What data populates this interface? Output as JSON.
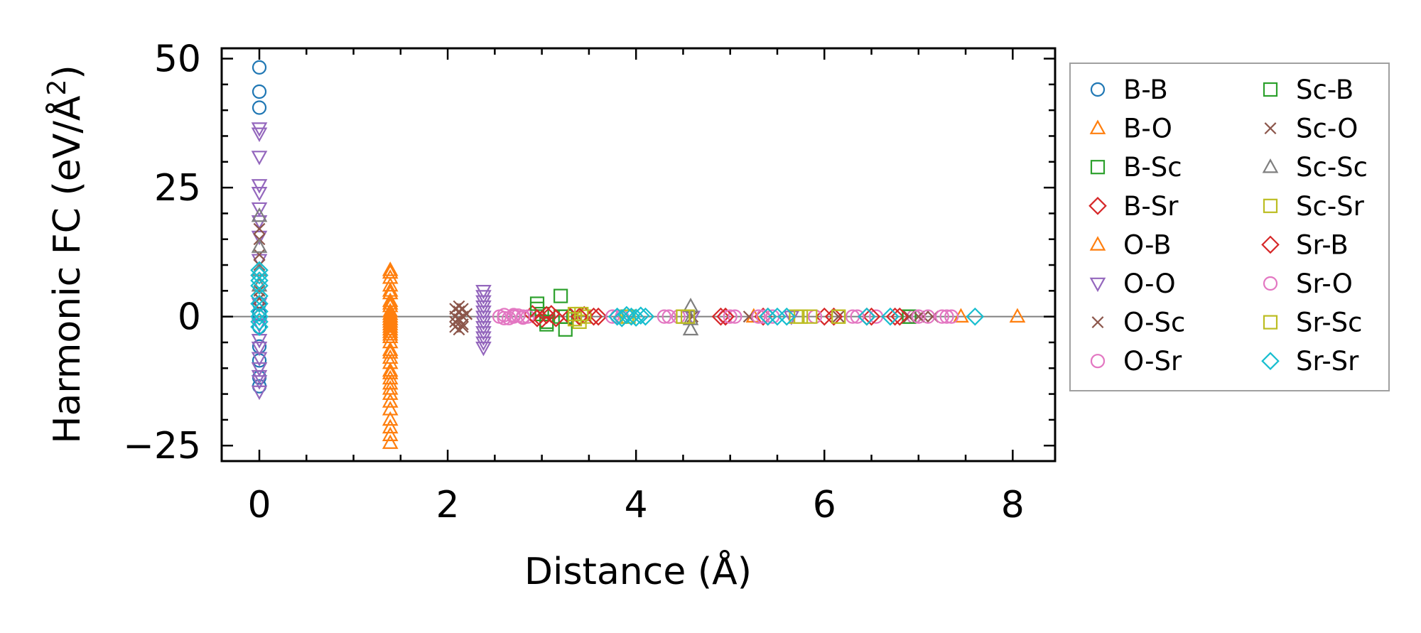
{
  "chart_data": {
    "type": "scatter",
    "title": "",
    "xlabel": "Distance (Å)",
    "ylabel_main": "Harmonic FC (eV/Å",
    "ylabel_sup": "2",
    "ylabel_end": ")",
    "xlim": [
      -0.4,
      8.45
    ],
    "ylim": [
      -28,
      52
    ],
    "xticks": [
      0,
      2,
      4,
      6,
      8
    ],
    "xtick_labels": [
      "0",
      "2",
      "4",
      "6",
      "8"
    ],
    "yticks": [
      -25,
      0,
      25,
      50
    ],
    "ytick_labels": [
      "−25",
      "0",
      "25",
      "50"
    ],
    "zero_line": true,
    "grid": false,
    "legend_position": "outside-right",
    "legend_columns": 2,
    "series": [
      {
        "name": "B-B",
        "marker": "circle",
        "color": "#1f77b4",
        "x": [
          0,
          0,
          0,
          0,
          0,
          0,
          0,
          0,
          0,
          0
        ],
        "y": [
          48.3,
          43.6,
          40.5,
          -5.8,
          -8.5,
          -11.8,
          -13.5,
          2.5,
          0.5,
          -2.0
        ]
      },
      {
        "name": "B-O",
        "marker": "triangle-up",
        "color": "#ff7f0e",
        "x": [
          1.39,
          1.39,
          1.39,
          1.39,
          1.39,
          1.39,
          1.39,
          1.39,
          1.39,
          1.39,
          1.39,
          1.39,
          1.39,
          1.39,
          1.39,
          1.39,
          1.39,
          1.39,
          1.39,
          1.39,
          1.39,
          1.39,
          1.39,
          1.39,
          1.39,
          1.39,
          1.39,
          1.39,
          1.39,
          1.39,
          8.05,
          7.45,
          5.25
        ],
        "y": [
          8.5,
          7.5,
          6.0,
          4.5,
          3.0,
          2.0,
          1.0,
          0.0,
          -1.0,
          -2.0,
          -3.0,
          -4.0,
          -5.0,
          -6.5,
          -8.0,
          -9.0,
          -10.5,
          -12.0,
          -13.0,
          -15.0,
          -16.5,
          -18.0,
          -20.0,
          -21.5,
          -23.0,
          -24.5,
          0.5,
          -0.5,
          -1.5,
          -2.5,
          0.0,
          0.0,
          0.0
        ]
      },
      {
        "name": "B-Sc",
        "marker": "square",
        "color": "#2ca02c",
        "x": [
          2.95,
          3.0,
          3.05,
          3.2,
          3.25,
          6.9
        ],
        "y": [
          1.5,
          0.5,
          -1.5,
          0.0,
          0.0,
          0.0
        ]
      },
      {
        "name": "B-Sr",
        "marker": "diamond",
        "color": "#d62728",
        "x": [
          2.9,
          3.0,
          3.1,
          3.3,
          3.45,
          3.6,
          4.9,
          5.35,
          6.0,
          6.45,
          6.75
        ],
        "y": [
          0.5,
          -0.5,
          0.5,
          0.0,
          0.3,
          0.0,
          0.0,
          0.0,
          0.0,
          0.0,
          0.0
        ]
      },
      {
        "name": "O-B",
        "marker": "triangle-up",
        "color": "#ff7f0e",
        "x": [
          1.39,
          1.39,
          1.39,
          1.39,
          1.39,
          1.39,
          1.39,
          1.39
        ],
        "y": [
          9.0,
          5.0,
          2.5,
          -0.5,
          -3.5,
          -7.0,
          -11.0,
          -14.0
        ]
      },
      {
        "name": "O-O",
        "marker": "triangle-down",
        "color": "#9467bd",
        "x": [
          0,
          0,
          0,
          0,
          0,
          0,
          0,
          0,
          0,
          0,
          0,
          0,
          0,
          0,
          0,
          0,
          0,
          0,
          2.38,
          2.38,
          2.38,
          2.38,
          2.38,
          2.38,
          2.38,
          2.38,
          2.38,
          2.38,
          2.38,
          2.38,
          4.6,
          5.65
        ],
        "y": [
          36.5,
          35.5,
          31.0,
          25.5,
          24.0,
          21.0,
          18.5,
          15.5,
          11.0,
          -4.5,
          -6.0,
          -8.0,
          -10.0,
          -11.5,
          -12.5,
          -14.5,
          2.5,
          -1.5,
          5.0,
          4.0,
          3.0,
          2.0,
          1.0,
          0.0,
          -1.0,
          -2.0,
          -3.0,
          -4.0,
          -5.0,
          -6.0,
          0.0,
          0.0
        ]
      },
      {
        "name": "O-Sc",
        "marker": "x",
        "color": "#8c564b",
        "x": [
          0,
          0,
          0,
          0,
          0,
          0,
          0,
          0,
          2.08,
          2.08,
          2.08,
          2.12,
          2.12,
          2.12,
          2.16,
          2.16,
          2.16,
          2.2,
          4.6,
          5.2,
          6.15,
          6.9,
          7.05,
          7.15
        ],
        "y": [
          17.0,
          15.0,
          12.0,
          10.0,
          7.5,
          5.0,
          3.5,
          1.5,
          1.5,
          0.0,
          -2.0,
          1.0,
          -0.5,
          -2.5,
          1.5,
          0.0,
          -1.5,
          0.5,
          0.0,
          0.0,
          0.0,
          0.0,
          0.0,
          0.0
        ]
      },
      {
        "name": "O-Sr",
        "marker": "circle",
        "color": "#e377c2",
        "x": [
          2.55,
          2.6,
          2.65,
          2.7,
          2.75,
          2.8,
          2.85,
          3.75,
          3.85,
          4.3,
          4.45,
          4.95,
          5.05,
          5.3,
          5.45,
          5.9,
          6.3,
          6.55,
          6.95,
          7.1,
          7.3
        ],
        "y": [
          0.0,
          0.3,
          -0.3,
          0.0,
          0.2,
          -0.2,
          0.0,
          0.0,
          0.0,
          0.0,
          0.0,
          0.0,
          0.0,
          0.0,
          0.0,
          0.0,
          0.0,
          0.0,
          0.0,
          0.0,
          0.0
        ]
      },
      {
        "name": "Sc-B",
        "marker": "square",
        "color": "#2ca02c",
        "x": [
          2.95,
          3.05,
          3.2,
          3.25,
          6.9
        ],
        "y": [
          2.5,
          -1.0,
          4.0,
          -2.5,
          0.0
        ]
      },
      {
        "name": "Sc-O",
        "marker": "x",
        "color": "#8c564b",
        "x": [
          2.08,
          2.12,
          2.16,
          2.2,
          6.9,
          7.0
        ],
        "y": [
          -1.0,
          2.0,
          -2.0,
          0.5,
          0.0,
          0.0
        ]
      },
      {
        "name": "Sc-Sc",
        "marker": "triangle-up",
        "color": "#7f7f7f",
        "x": [
          0,
          0,
          0,
          0,
          4.58,
          4.58,
          4.58
        ],
        "y": [
          19.5,
          13.5,
          9.0,
          6.0,
          2.0,
          -0.5,
          -2.5
        ]
      },
      {
        "name": "Sc-Sr",
        "marker": "square",
        "color": "#bcbd22",
        "x": [
          3.35,
          3.4,
          3.45,
          3.9,
          4.5,
          4.55,
          5.7,
          5.85,
          6.15
        ],
        "y": [
          0.5,
          -1.0,
          0.0,
          0.0,
          0.0,
          0.0,
          0.0,
          0.0,
          0.0
        ]
      },
      {
        "name": "Sr-B",
        "marker": "diamond",
        "color": "#d62728",
        "x": [
          2.95,
          3.05,
          3.15,
          3.4,
          3.55,
          4.95,
          5.4,
          6.1,
          6.5,
          6.8
        ],
        "y": [
          -0.3,
          0.3,
          -0.3,
          0.0,
          0.0,
          0.0,
          0.0,
          0.0,
          0.0,
          0.0
        ]
      },
      {
        "name": "Sr-O",
        "marker": "circle",
        "color": "#e377c2",
        "x": [
          2.6,
          2.7,
          2.8,
          3.8,
          4.35,
          5.0,
          5.35,
          6.35,
          7.0,
          7.25,
          7.35
        ],
        "y": [
          -0.3,
          0.3,
          0.0,
          0.0,
          0.0,
          0.0,
          0.0,
          0.0,
          0.0,
          0.0,
          0.0
        ]
      },
      {
        "name": "Sr-Sc",
        "marker": "square",
        "color": "#bcbd22",
        "x": [
          3.35,
          3.42,
          3.92,
          4.5,
          5.75,
          6.15
        ],
        "y": [
          -0.5,
          0.5,
          0.0,
          0.0,
          0.0,
          0.0
        ]
      },
      {
        "name": "Sr-Sr",
        "marker": "diamond",
        "color": "#17becf",
        "x": [
          0,
          0,
          0,
          0,
          0,
          0,
          0,
          0,
          0,
          0,
          3.8,
          3.85,
          3.9,
          3.95,
          4.0,
          4.05,
          4.1,
          5.4,
          5.5,
          5.6,
          6.45,
          6.7,
          7.6
        ],
        "y": [
          9.0,
          8.0,
          7.0,
          6.0,
          4.0,
          2.5,
          1.0,
          0.0,
          -1.0,
          -2.0,
          0.0,
          -0.3,
          0.3,
          0.0,
          -0.2,
          0.2,
          0.0,
          0.0,
          0.0,
          0.0,
          0.0,
          0.0,
          0.0
        ]
      }
    ]
  }
}
